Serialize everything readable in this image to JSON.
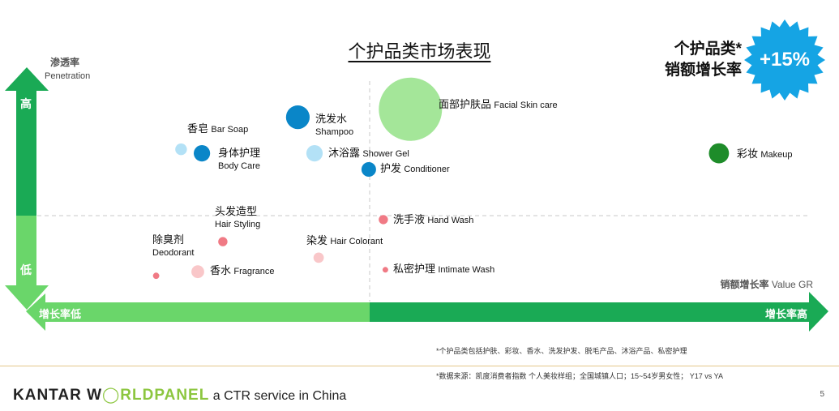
{
  "title": "个护品类市场表现",
  "stat": {
    "label_line1": "个护品类*",
    "label_line2": "销额增长率",
    "value": "+15%",
    "badge_color": "#15a4e4"
  },
  "y_axis": {
    "label_cn": "渗透率",
    "label_en": "Penetration",
    "high": "高",
    "low": "低"
  },
  "x_axis": {
    "label_cn": "销额增长率",
    "label_en": "Value GR",
    "low": "增长率低",
    "high": "增长率高"
  },
  "colors": {
    "axis_dark": "#1aaa55",
    "axis_light": "#6ad66a",
    "mid_blue": "#0a86c8",
    "light_blue": "#b3e1f6",
    "light_green": "#a4e699",
    "dark_green": "#1e8c2a",
    "pink": "#f07a85",
    "light_pink": "#f9c7c9"
  },
  "chart_data": {
    "type": "scatter",
    "title": "个护品类市场表现",
    "xlabel": "销额增长率 Value GR",
    "ylabel": "渗透率 Penetration",
    "points": [
      {
        "cn": "面部护肤品",
        "en": "Facial Skin care",
        "x": 0.04,
        "y": 0.86,
        "size": 1.0,
        "color": "#a4e699"
      },
      {
        "cn": "洗发水",
        "en": "Shampoo",
        "x": -0.23,
        "y": 0.82,
        "size": 0.34,
        "color": "#0a86c8"
      },
      {
        "cn": "彩妆",
        "en": "Makeup",
        "x": 0.78,
        "y": 0.64,
        "size": 0.28,
        "color": "#1e8c2a"
      },
      {
        "cn": "身体护理",
        "en": "Body Care",
        "x": -0.46,
        "y": 0.64,
        "size": 0.22,
        "color": "#0a86c8"
      },
      {
        "cn": "香皂",
        "en": "Bar Soap",
        "x": -0.51,
        "y": 0.66,
        "size": 0.14,
        "color": "#b3e1f6"
      },
      {
        "cn": "沐浴露",
        "en": "Shower Gel",
        "x": -0.19,
        "y": 0.64,
        "size": 0.22,
        "color": "#b3e1f6"
      },
      {
        "cn": "护发",
        "en": "Conditioner",
        "x": -0.06,
        "y": 0.56,
        "size": 0.19,
        "color": "#0a86c8"
      },
      {
        "cn": "洗手液",
        "en": "Hand Wash",
        "x": -0.025,
        "y": 0.31,
        "size": 0.1,
        "color": "#f07a85"
      },
      {
        "cn": "头发造型",
        "en": "Hair Styling",
        "x": -0.41,
        "y": 0.2,
        "size": 0.1,
        "color": "#f07a85"
      },
      {
        "cn": "除臭剂",
        "en": "Deodorant",
        "x": -0.57,
        "y": 0.03,
        "size": 0.05,
        "color": "#f07a85"
      },
      {
        "cn": "香水",
        "en": "Fragrance",
        "x": -0.47,
        "y": 0.05,
        "size": 0.16,
        "color": "#f9c7c9"
      },
      {
        "cn": "染发",
        "en": "Hair Colorant",
        "x": -0.18,
        "y": 0.12,
        "size": 0.12,
        "color": "#f9c7c9"
      },
      {
        "cn": "私密护理",
        "en": "Intimate Wash",
        "x": -0.02,
        "y": 0.06,
        "size": 0.04,
        "color": "#f07a85"
      }
    ],
    "xlim": [
      -0.75,
      1.0
    ],
    "ylim": [
      -0.05,
      1.0
    ],
    "dividers": {
      "x": 0,
      "y": 0.37
    }
  },
  "notes": {
    "scope": "*个护品类包括护肤、彩妆、香水、洗发护发、脱毛产品、沐浴产品、私密护理",
    "source": "*数据来源：凯度消费者指数 个人美妆样组；全国城镇人口；15~54岁男女性； Y17 vs YA"
  },
  "footer": {
    "brand_a": "KANTAR W",
    "brand_b": "RLDPANEL",
    "tagline": " a CTR service in China",
    "page": "5"
  }
}
